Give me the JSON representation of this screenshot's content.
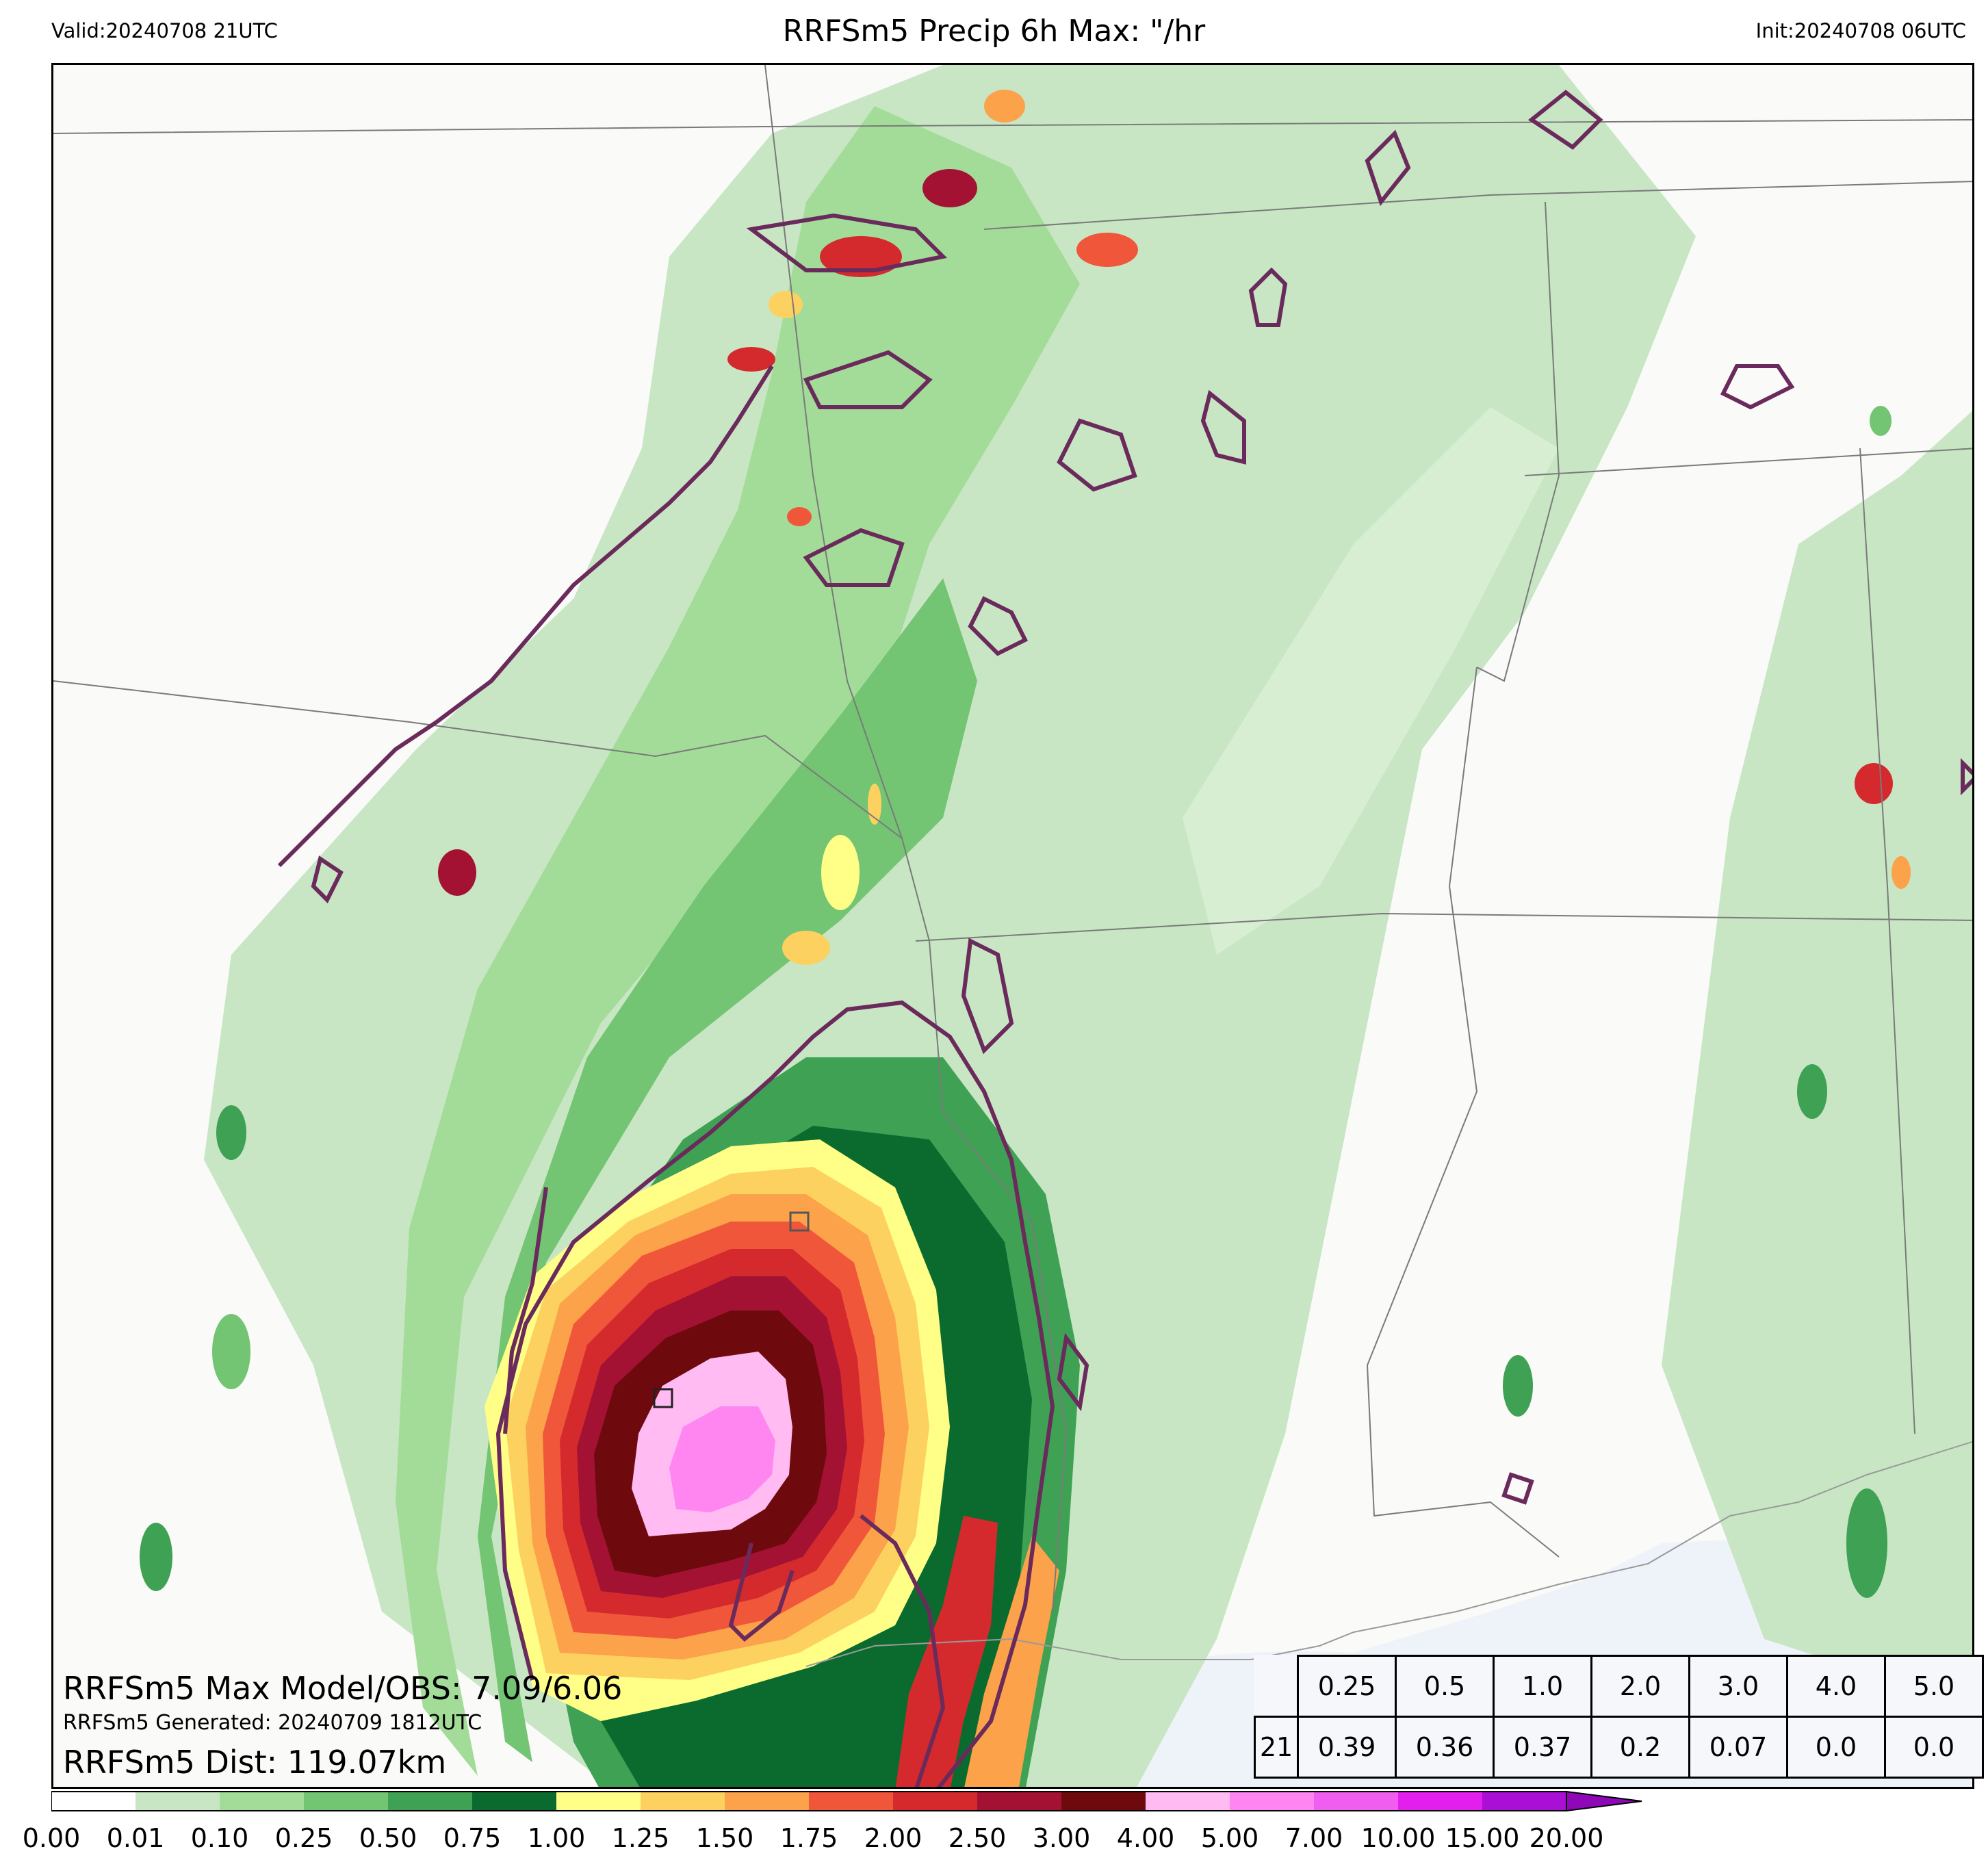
{
  "header": {
    "valid": "Valid:20240708 21UTC",
    "title": "RRFSm5 Precip 6h Max: \"/hr",
    "init": "Init:20240708 06UTC"
  },
  "info": {
    "max_line": "RRFSm5 Max Model/OBS: 7.09/6.06",
    "generated_line": "RRFSm5 Generated: 20240709 1812UTC",
    "dist_line": "RRFSm5 Dist: 119.07km"
  },
  "stats_table": {
    "thresholds": [
      "0.25",
      "0.5",
      "1.0",
      "2.0",
      "3.0",
      "4.0",
      "5.0"
    ],
    "hour": "21",
    "values": [
      "0.39",
      "0.36",
      "0.37",
      "0.2",
      "0.07",
      "0.0",
      "0.0"
    ]
  },
  "colorbar": {
    "levels": [
      "0.00",
      "0.01",
      "0.10",
      "0.25",
      "0.50",
      "0.75",
      "1.00",
      "1.25",
      "1.50",
      "1.75",
      "2.00",
      "2.50",
      "3.00",
      "4.00",
      "5.00",
      "7.00",
      "10.00",
      "15.00",
      "20.00"
    ],
    "colors": [
      "#ffffff",
      "#c8e6c4",
      "#a3dc98",
      "#73c473",
      "#3fa153",
      "#0b6b2e",
      "#ffff88",
      "#fdd160",
      "#fba24a",
      "#f0563a",
      "#d42a2e",
      "#a31232",
      "#6e0a0e",
      "#ffbbf2",
      "#ff86f0",
      "#f05ef0",
      "#e21fec",
      "#a90fd4"
    ],
    "extend_color": "#8e08b8"
  },
  "map": {
    "features": [
      "state-borders",
      "coastline",
      "precip-shading",
      "observed-contours",
      "obs-max-marker",
      "model-max-marker"
    ],
    "contour_color": "#6b2a5c"
  }
}
